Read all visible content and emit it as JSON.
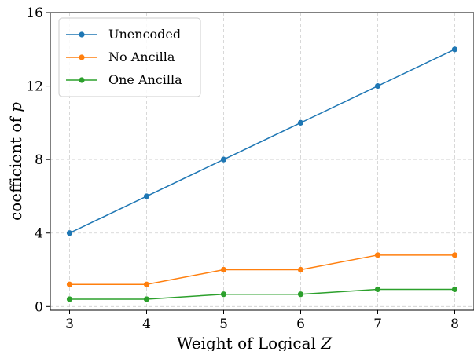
{
  "chart_data": {
    "type": "line",
    "title": "",
    "xlabel": "Weight of Logical ",
    "xlabel_var": "Z",
    "ylabel": "coefficient of ",
    "ylabel_var": "p",
    "x": [
      3,
      4,
      5,
      6,
      7,
      8
    ],
    "xticks": [
      "3",
      "4",
      "5",
      "6",
      "7",
      "8"
    ],
    "yticks": [
      "0",
      "4",
      "8",
      "12",
      "16"
    ],
    "xlim": [
      2.75,
      8.25
    ],
    "ylim": [
      -0.2,
      16
    ],
    "grid": true,
    "legend_position": "top-left",
    "series": [
      {
        "name": "Unencoded",
        "color": "#1f77b4",
        "values": [
          4,
          6,
          8,
          10,
          12,
          14
        ]
      },
      {
        "name": "No Ancilla",
        "color": "#ff7f0e",
        "values": [
          1.2,
          1.2,
          2.0,
          2.0,
          2.8,
          2.8
        ]
      },
      {
        "name": "One Ancilla",
        "color": "#2ca02c",
        "values": [
          0.4,
          0.4,
          0.667,
          0.667,
          0.933,
          0.933
        ]
      }
    ]
  }
}
